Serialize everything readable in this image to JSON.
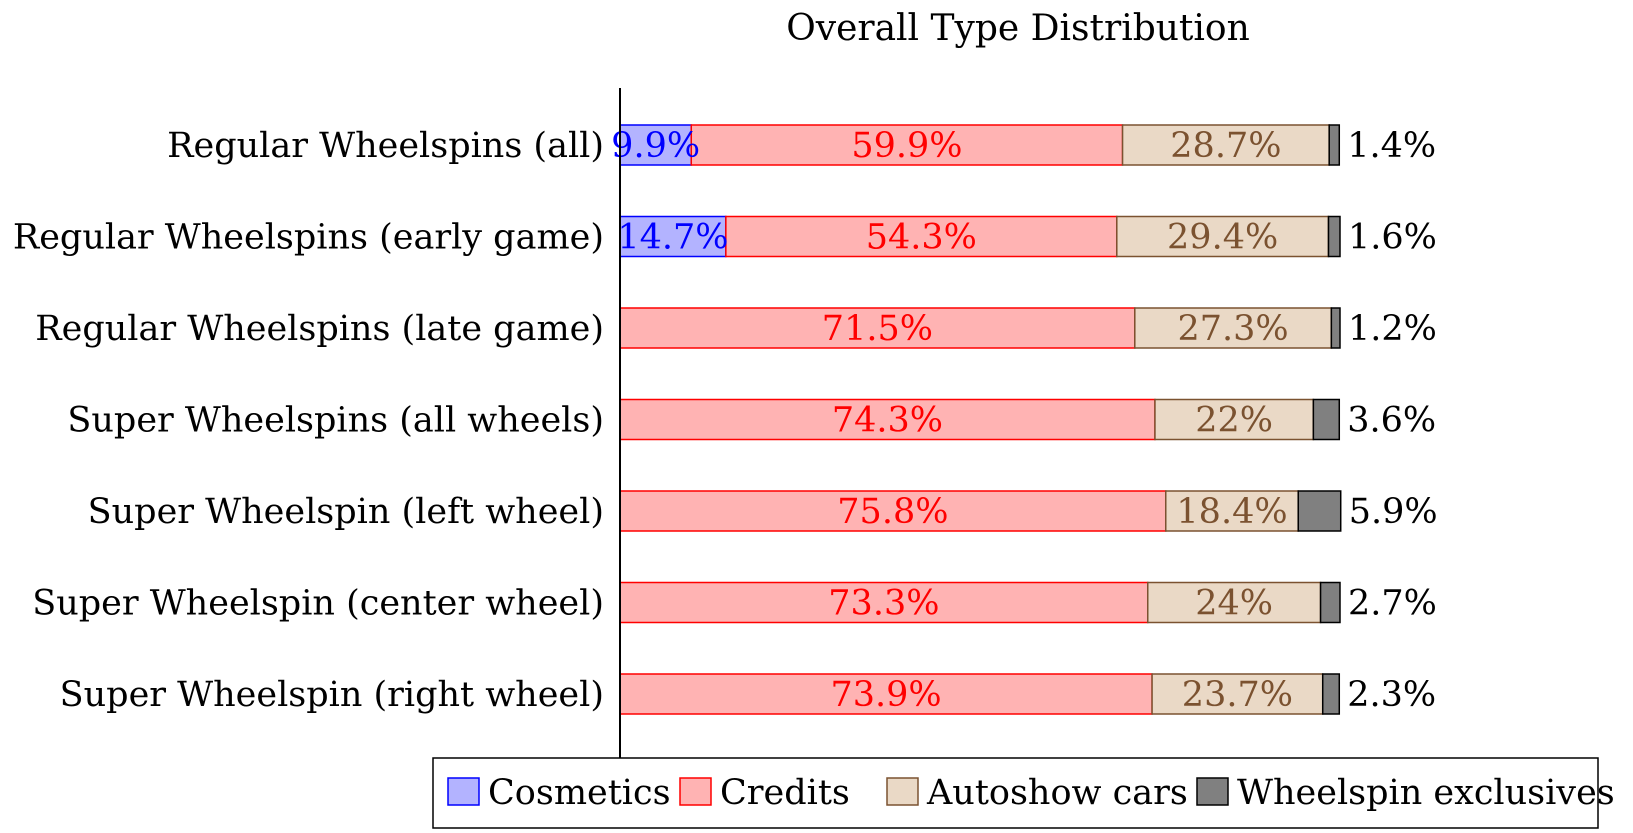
{
  "chart_data": {
    "type": "bar",
    "orientation": "horizontal",
    "stacked": true,
    "title": "Overall Type Distribution",
    "categories": [
      "Regular Wheelspins (all)",
      "Regular Wheelspins (early game)",
      "Regular Wheelspins (late game)",
      "Super Wheelspins (all wheels)",
      "Super Wheelspin (left wheel)",
      "Super Wheelspin (center wheel)",
      "Super Wheelspin (right wheel)"
    ],
    "series": [
      {
        "name": "Cosmetics",
        "values": [
          9.9,
          14.7,
          0,
          0,
          0,
          0,
          0
        ],
        "labels": [
          "9.9%",
          "14.7%",
          "",
          "",
          "",
          "",
          ""
        ],
        "fill": "#b3b3ff",
        "stroke": "#0000ff",
        "text_color": "#0000ff"
      },
      {
        "name": "Credits",
        "values": [
          59.9,
          54.3,
          71.5,
          74.3,
          75.8,
          73.3,
          73.9
        ],
        "labels": [
          "59.9%",
          "54.3%",
          "71.5%",
          "74.3%",
          "75.8%",
          "73.3%",
          "73.9%"
        ],
        "fill": "#ffb3b3",
        "stroke": "#ff0000",
        "text_color": "#ff0000"
      },
      {
        "name": "Autoshow cars",
        "values": [
          28.7,
          29.4,
          27.3,
          22,
          18.4,
          24,
          23.7
        ],
        "labels": [
          "28.7%",
          "29.4%",
          "27.3%",
          "22%",
          "18.4%",
          "24%",
          "23.7%"
        ],
        "fill": "#ead9c6",
        "stroke": "#7b5230",
        "text_color": "#7b5230"
      },
      {
        "name": "Wheelspin exclusives",
        "values": [
          1.4,
          1.6,
          1.2,
          3.6,
          5.9,
          2.7,
          2.3
        ],
        "labels": [
          "1.4%",
          "1.6%",
          "1.2%",
          "3.6%",
          "5.9%",
          "2.7%",
          "2.3%"
        ],
        "fill": "#808080",
        "stroke": "#000000",
        "text_color": "#000000"
      }
    ],
    "xlim": [
      0,
      100
    ],
    "grid": false,
    "legend_position": "bottom"
  }
}
